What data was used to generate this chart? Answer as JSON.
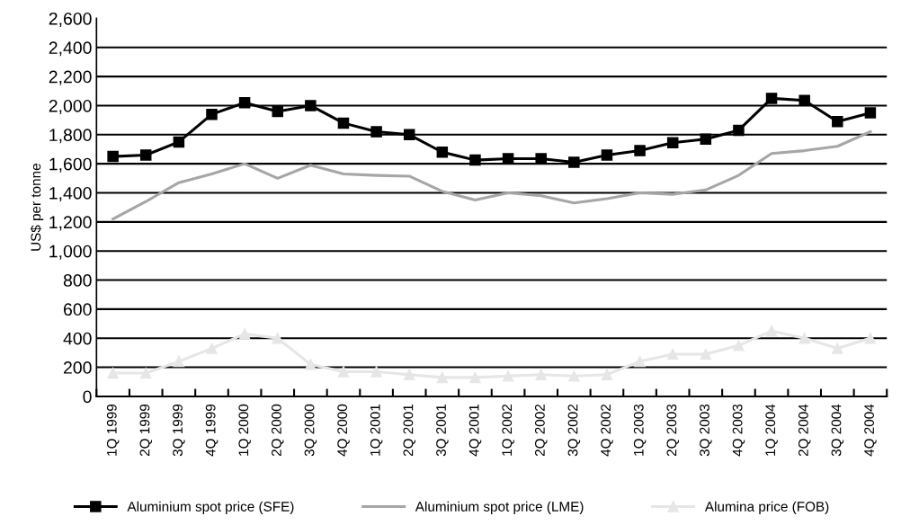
{
  "chart_data": {
    "type": "line",
    "ylabel": "US$ per tonne",
    "categories": [
      "1Q 1999",
      "2Q 1999",
      "3Q 1999",
      "4Q 1999",
      "1Q 2000",
      "2Q 2000",
      "3Q 2000",
      "4Q 2000",
      "1Q 2001",
      "2Q 2001",
      "3Q 2001",
      "4Q 2001",
      "1Q 2002",
      "2Q 2002",
      "3Q 2002",
      "4Q 2002",
      "1Q 2003",
      "2Q 2003",
      "3Q 2003",
      "4Q 2003",
      "1Q 2004",
      "2Q 2004",
      "3Q 2004",
      "4Q 2004"
    ],
    "series": [
      {
        "name": "Aluminium spot price (SFE)",
        "color": "#000000",
        "marker": "square",
        "values": [
          1650,
          1660,
          1750,
          1940,
          2020,
          1960,
          2000,
          1880,
          1820,
          1800,
          1680,
          1625,
          1635,
          1635,
          1610,
          1660,
          1690,
          1745,
          1770,
          1830,
          2050,
          2035,
          1890,
          1950
        ]
      },
      {
        "name": "Aluminium spot price (LME)",
        "color": "#a6a6a6",
        "marker": "none",
        "values": [
          1220,
          1340,
          1470,
          1530,
          1600,
          1500,
          1590,
          1530,
          1520,
          1515,
          1410,
          1350,
          1400,
          1380,
          1330,
          1360,
          1400,
          1390,
          1420,
          1520,
          1670,
          1690,
          1720,
          1820
        ]
      },
      {
        "name": "Alumina price (FOB)",
        "color": "#e6e6e6",
        "marker": "triangle",
        "values": [
          160,
          160,
          240,
          330,
          430,
          400,
          220,
          170,
          170,
          150,
          130,
          130,
          140,
          150,
          140,
          150,
          240,
          290,
          290,
          350,
          450,
          400,
          330,
          400
        ]
      }
    ],
    "ylim": [
      0,
      2600
    ],
    "yticks": [
      0,
      {
        "value": 200,
        "label": "200"
      },
      {
        "value": 400,
        "label": "400"
      },
      {
        "value": 600,
        "label": "600"
      },
      {
        "value": 800,
        "label": "800"
      },
      {
        "value": 1000,
        "label": "1,000"
      },
      {
        "value": 1200,
        "label": "1,200"
      },
      {
        "value": 1400,
        "label": "1,400"
      },
      {
        "value": 1600,
        "label": "1,600"
      },
      {
        "value": 1800,
        "label": "1,800"
      },
      {
        "value": 2000,
        "label": "2,000"
      },
      {
        "value": 2200,
        "label": "2,200"
      },
      {
        "value": 2400,
        "label": "2,400"
      },
      {
        "value": 2600,
        "label": "2,600"
      }
    ],
    "grid": "y",
    "legend": "bottom",
    "line_style": "solid"
  }
}
